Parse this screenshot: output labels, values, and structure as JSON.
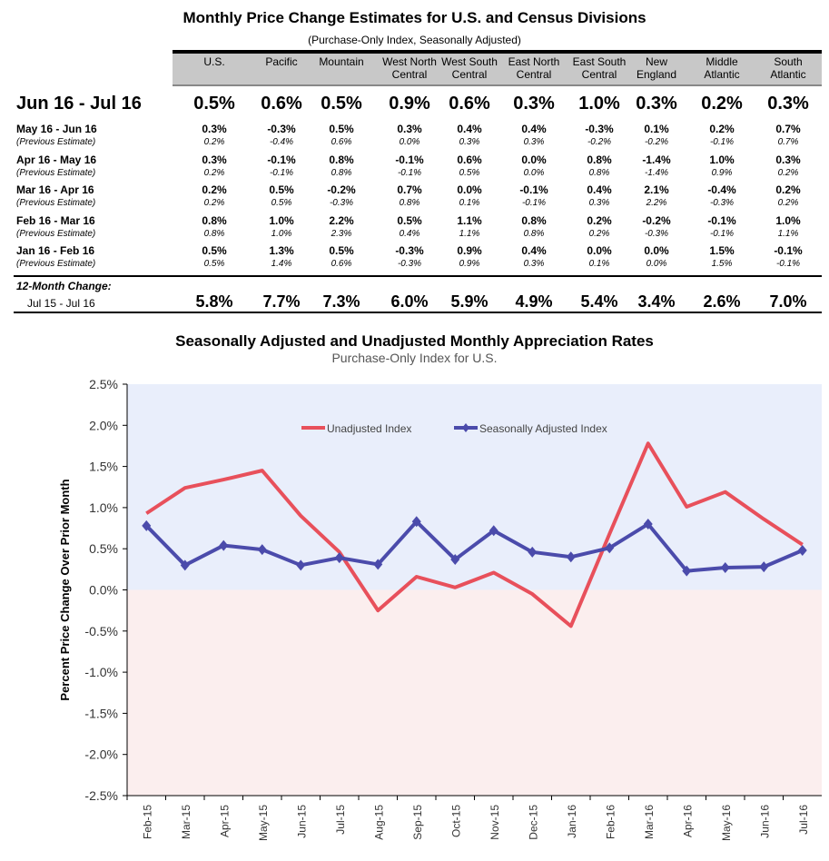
{
  "table": {
    "title": "Monthly Price Change Estimates for U.S. and Census Divisions",
    "subtitle": "(Purchase-Only Index, Seasonally Adjusted)",
    "columns": [
      [
        "U.S.",
        ""
      ],
      [
        "Pacific",
        ""
      ],
      [
        "Mountain",
        ""
      ],
      [
        "West North",
        "Central"
      ],
      [
        "West South",
        "Central"
      ],
      [
        "East North",
        "Central"
      ],
      [
        "East South",
        "Central"
      ],
      [
        "New",
        "England"
      ],
      [
        "Middle",
        "Atlantic"
      ],
      [
        "South",
        "Atlantic"
      ]
    ],
    "current": {
      "label": "Jun  16 - Jul 16",
      "values": [
        "0.5%",
        "0.6%",
        "0.5%",
        "0.9%",
        "0.6%",
        "0.3%",
        "1.0%",
        "0.3%",
        "0.2%",
        "0.3%"
      ]
    },
    "rows": [
      {
        "label": "May  16 - Jun 16",
        "values": [
          "0.3%",
          "-0.3%",
          "0.5%",
          "0.3%",
          "0.4%",
          "0.4%",
          "-0.3%",
          "0.1%",
          "0.2%",
          "0.7%"
        ],
        "prev_label": "(Previous Estimate)",
        "prev": [
          "0.2%",
          "-0.4%",
          "0.6%",
          "0.0%",
          "0.3%",
          "0.3%",
          "-0.2%",
          "-0.2%",
          "-0.1%",
          "0.7%"
        ]
      },
      {
        "label": "Apr  16 - May 16",
        "values": [
          "0.3%",
          "-0.1%",
          "0.8%",
          "-0.1%",
          "0.6%",
          "0.0%",
          "0.8%",
          "-1.4%",
          "1.0%",
          "0.3%"
        ],
        "prev_label": "(Previous Estimate)",
        "prev": [
          "0.2%",
          "-0.1%",
          "0.8%",
          "-0.1%",
          "0.5%",
          "0.0%",
          "0.8%",
          "-1.4%",
          "0.9%",
          "0.2%"
        ]
      },
      {
        "label": "Mar  16 - Apr 16",
        "values": [
          "0.2%",
          "0.5%",
          "-0.2%",
          "0.7%",
          "0.0%",
          "-0.1%",
          "0.4%",
          "2.1%",
          "-0.4%",
          "0.2%"
        ],
        "prev_label": "(Previous Estimate)",
        "prev": [
          "0.2%",
          "0.5%",
          "-0.3%",
          "0.8%",
          "0.1%",
          "-0.1%",
          "0.3%",
          "2.2%",
          "-0.3%",
          "0.2%"
        ]
      },
      {
        "label": "Feb  16 - Mar 16",
        "values": [
          "0.8%",
          "1.0%",
          "2.2%",
          "0.5%",
          "1.1%",
          "0.8%",
          "0.2%",
          "-0.2%",
          "-0.1%",
          "1.0%"
        ],
        "prev_label": "(Previous Estimate)",
        "prev": [
          "0.8%",
          "1.0%",
          "2.3%",
          "0.4%",
          "1.1%",
          "0.8%",
          "0.2%",
          "-0.3%",
          "-0.1%",
          "1.1%"
        ]
      },
      {
        "label": "Jan  16 - Feb 16",
        "values": [
          "0.5%",
          "1.3%",
          "0.5%",
          "-0.3%",
          "0.9%",
          "0.4%",
          "0.0%",
          "0.0%",
          "1.5%",
          "-0.1%"
        ],
        "prev_label": "(Previous Estimate)",
        "prev": [
          "0.5%",
          "1.4%",
          "0.6%",
          "-0.3%",
          "0.9%",
          "0.3%",
          "0.1%",
          "0.0%",
          "1.5%",
          "-0.1%"
        ]
      }
    ],
    "twelve_month": {
      "label": "12-Month Change:",
      "period": "Jul  15 - Jul 16",
      "values": [
        "5.8%",
        "7.7%",
        "7.3%",
        "6.0%",
        "5.9%",
        "4.9%",
        "5.4%",
        "3.4%",
        "2.6%",
        "7.0%"
      ]
    }
  },
  "chart_data": {
    "type": "line",
    "title": "Seasonally Adjusted and Unadjusted Monthly Appreciation Rates",
    "subtitle": "Purchase-Only Index for U.S.",
    "ylabel": "Percent Price Change Over Prior Month",
    "ylim": [
      -2.5,
      2.5
    ],
    "yticks": [
      "2.5%",
      "2.0%",
      "1.5%",
      "1.0%",
      "0.5%",
      "0.0%",
      "-0.5%",
      "-1.0%",
      "-1.5%",
      "-2.0%",
      "-2.5%"
    ],
    "categories": [
      "Feb-15",
      "Mar-15",
      "Apr-15",
      "May-15",
      "Jun-15",
      "Jul-15",
      "Aug-15",
      "Sep-15",
      "Oct-15",
      "Nov-15",
      "Dec-15",
      "Jan-16",
      "Feb-16",
      "Mar-16",
      "Apr-16",
      "May-16",
      "Jun-16",
      "Jul-16"
    ],
    "legend": "top-center",
    "series": [
      {
        "name": "Unadjusted Index",
        "color": "#e8505b",
        "values": [
          0.93,
          1.24,
          1.34,
          1.45,
          0.9,
          0.46,
          -0.25,
          0.16,
          0.03,
          0.21,
          -0.05,
          -0.44,
          0.68,
          1.78,
          1.01,
          1.19,
          0.86,
          0.55
        ]
      },
      {
        "name": "Seasonally Adjusted Index",
        "color": "#4b4bab",
        "values": [
          0.78,
          0.3,
          0.54,
          0.49,
          0.3,
          0.39,
          0.31,
          0.83,
          0.37,
          0.72,
          0.46,
          0.4,
          0.51,
          0.8,
          0.23,
          0.27,
          0.28,
          0.48
        ]
      }
    ]
  }
}
